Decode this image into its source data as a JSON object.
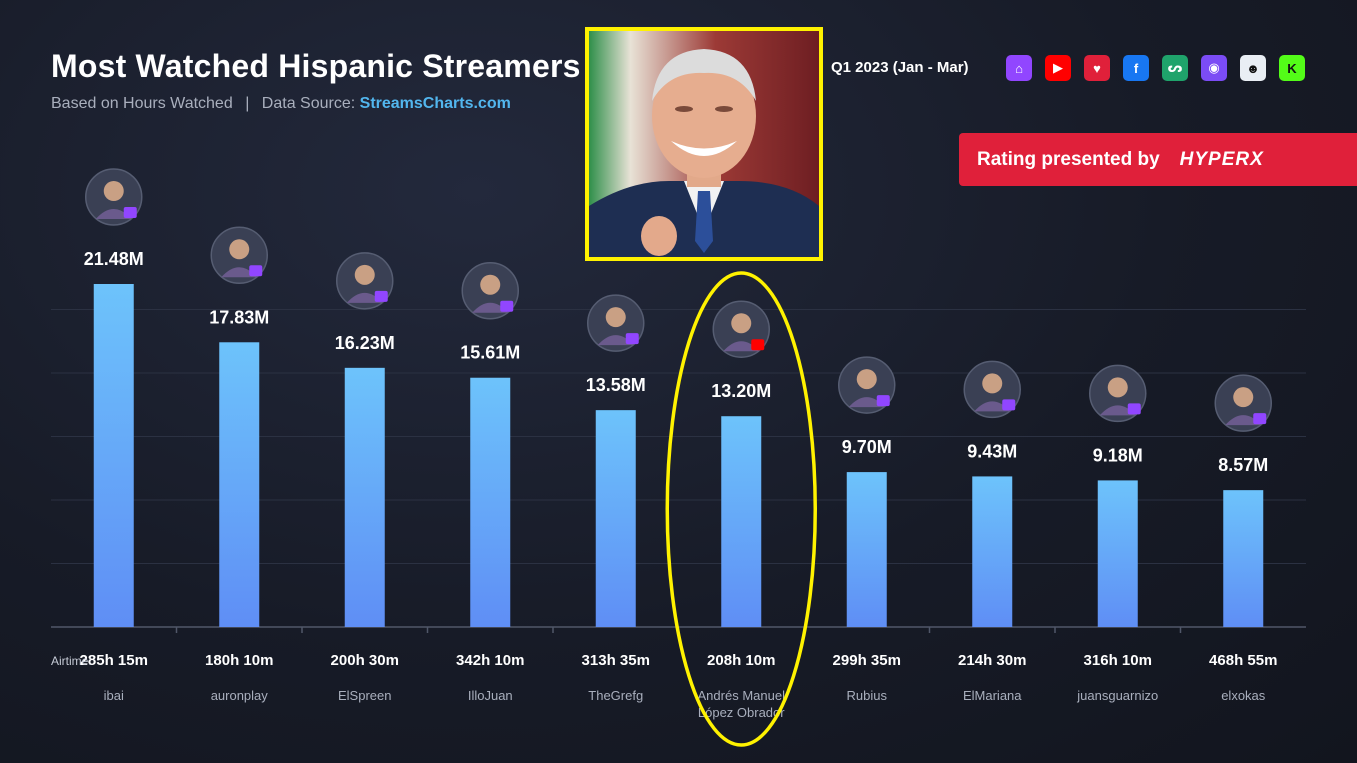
{
  "header": {
    "title": "Most Watched Hispanic Streamers",
    "subtitle_prefix": "Based on Hours Watched",
    "subtitle_separator": "|",
    "subtitle_source_label": "Data Source:",
    "subtitle_source_link": "StreamsCharts.com",
    "period": "Q1 2023 (Jan - Mar)"
  },
  "platform_icons": [
    {
      "name": "twitch-icon",
      "glyph": "⌂",
      "color": "#9146ff"
    },
    {
      "name": "youtube-icon",
      "glyph": "▶",
      "color": "#ff0000"
    },
    {
      "name": "trovo-icon",
      "glyph": "♥",
      "color": "#e0203a"
    },
    {
      "name": "facebook-icon",
      "glyph": "f",
      "color": "#1877f2"
    },
    {
      "name": "nimo-icon",
      "glyph": "ᔕ",
      "color": "#1fa36b"
    },
    {
      "name": "booyah-icon",
      "glyph": "◉",
      "color": "#7b4cf5"
    },
    {
      "name": "ghost-icon",
      "glyph": "☻",
      "color": "#e9eef4"
    },
    {
      "name": "kick-icon",
      "glyph": "K",
      "color": "#53fc18"
    }
  ],
  "sponsor": {
    "text": "Rating presented by",
    "brand": "HYPERX"
  },
  "colors": {
    "bar_top": "#6dc3fb",
    "bar_bottom": "#5f8ef5",
    "highlight": "#fff200",
    "twitch_badge": "#9146ff",
    "youtube_badge": "#ff0000"
  },
  "chart_data": {
    "type": "bar",
    "categories": [
      "ibai",
      "auronplay",
      "ElSpreen",
      "IlloJuan",
      "TheGrefg",
      "Andrés Manuel López Obrador",
      "Rubius",
      "ElMariana",
      "juansguarnizo",
      "elxokas"
    ],
    "values": [
      21.48,
      17.83,
      16.23,
      15.61,
      13.58,
      13.2,
      9.7,
      9.43,
      9.18,
      8.57
    ],
    "value_labels": [
      "21.48M",
      "17.83M",
      "16.23M",
      "15.61M",
      "13.58M",
      "13.20M",
      "9.70M",
      "9.43M",
      "9.18M",
      "8.57M"
    ],
    "airtime_label": "Airtime:",
    "airtime": [
      "285h 15m",
      "180h 10m",
      "200h 30m",
      "342h 10m",
      "313h 35m",
      "208h 10m",
      "299h 35m",
      "214h 30m",
      "316h 10m",
      "468h 55m"
    ],
    "platform": [
      "twitch",
      "twitch",
      "twitch",
      "twitch",
      "twitch",
      "youtube",
      "twitch",
      "twitch",
      "twitch",
      "twitch"
    ],
    "highlighted_index": 5,
    "grid": true,
    "unit": "M"
  }
}
